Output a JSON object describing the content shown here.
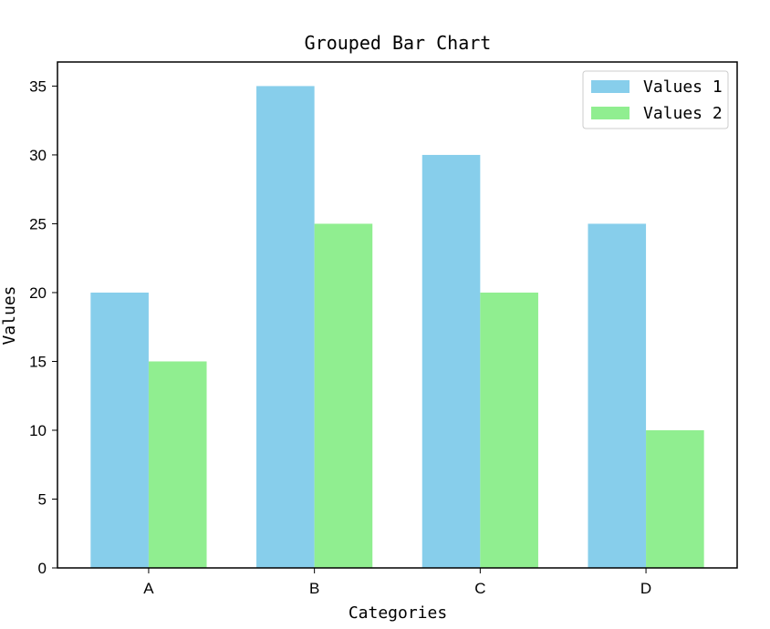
{
  "chart_data": {
    "type": "bar",
    "title": "Grouped Bar Chart",
    "xlabel": "Categories",
    "ylabel": "Values",
    "categories": [
      "A",
      "B",
      "C",
      "D"
    ],
    "series": [
      {
        "name": "Values 1",
        "values": [
          20,
          35,
          30,
          25
        ],
        "color": "#87CEEB"
      },
      {
        "name": "Values 2",
        "values": [
          15,
          25,
          20,
          10
        ],
        "color": "#90EE90"
      }
    ],
    "ylim": [
      0,
      36.75
    ],
    "yticks": [
      0,
      5,
      10,
      15,
      20,
      25,
      30,
      35
    ],
    "grid": false,
    "legend_position": "top-right"
  }
}
